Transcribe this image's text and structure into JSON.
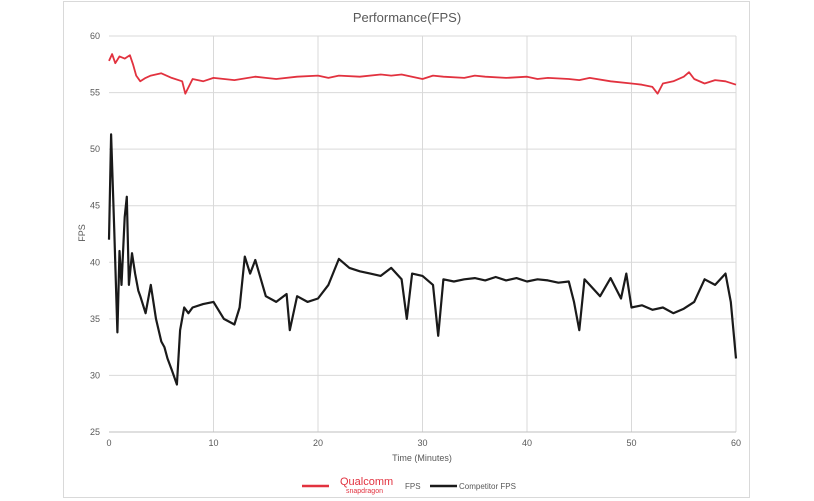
{
  "chart_data": {
    "type": "line",
    "title": "Performance(FPS)",
    "xlabel": "Time (Minutes)",
    "ylabel": "FPS",
    "xlim": [
      0,
      60
    ],
    "ylim": [
      25,
      60
    ],
    "xticks": [
      0,
      10,
      20,
      30,
      40,
      50,
      60
    ],
    "yticks": [
      25,
      30,
      35,
      40,
      45,
      50,
      55,
      60
    ],
    "grid": true,
    "legend_position": "bottom",
    "legend": {
      "qualcomm_brand": "Qualcomm",
      "qualcomm_sub": "snapdragon",
      "qualcomm_series_label": "FPS",
      "competitor_label": "Competitor FPS"
    },
    "series": [
      {
        "name": "Qualcomm snapdragon FPS",
        "color": "#e2323f",
        "x": [
          0,
          0.3,
          0.6,
          1.0,
          1.5,
          2.0,
          2.3,
          2.6,
          3.0,
          3.5,
          4.0,
          5.0,
          6.0,
          7.0,
          7.3,
          8.0,
          9.0,
          10.0,
          12.0,
          14.0,
          15.0,
          16.0,
          18.0,
          20.0,
          21.0,
          22.0,
          24.0,
          26.0,
          27.0,
          28.0,
          30.0,
          31.0,
          32.0,
          34.0,
          35.0,
          36.0,
          38.0,
          40.0,
          41.0,
          42.0,
          44.0,
          45.0,
          46.0,
          48.0,
          50.0,
          51.0,
          52.0,
          52.5,
          53.0,
          54.0,
          55.0,
          55.5,
          56.0,
          57.0,
          58.0,
          59.0,
          60.0
        ],
        "y": [
          57.8,
          58.4,
          57.6,
          58.2,
          58.0,
          58.3,
          57.5,
          56.5,
          56.0,
          56.3,
          56.5,
          56.7,
          56.3,
          56.0,
          54.9,
          56.2,
          56.0,
          56.3,
          56.1,
          56.4,
          56.3,
          56.2,
          56.4,
          56.5,
          56.3,
          56.5,
          56.4,
          56.6,
          56.5,
          56.6,
          56.2,
          56.5,
          56.4,
          56.3,
          56.5,
          56.4,
          56.3,
          56.4,
          56.2,
          56.3,
          56.2,
          56.1,
          56.3,
          56.0,
          55.8,
          55.7,
          55.5,
          54.9,
          55.8,
          56.0,
          56.4,
          56.8,
          56.2,
          55.8,
          56.1,
          56.0,
          55.7
        ]
      },
      {
        "name": "Competitor FPS",
        "color": "#1a1a1a",
        "x": [
          0,
          0.2,
          0.5,
          0.8,
          1.0,
          1.2,
          1.5,
          1.7,
          1.9,
          2.2,
          2.5,
          2.8,
          3.0,
          3.5,
          4.0,
          4.5,
          5.0,
          5.3,
          5.6,
          6.0,
          6.5,
          6.8,
          7.2,
          7.6,
          8.0,
          9.0,
          10.0,
          11.0,
          12.0,
          12.5,
          13.0,
          13.5,
          14.0,
          15.0,
          16.0,
          17.0,
          17.3,
          18.0,
          19.0,
          20.0,
          21.0,
          22.0,
          23.0,
          24.0,
          25.0,
          26.0,
          27.0,
          28.0,
          28.5,
          29.0,
          30.0,
          31.0,
          31.5,
          32.0,
          33.0,
          34.0,
          35.0,
          36.0,
          37.0,
          38.0,
          39.0,
          40.0,
          41.0,
          42.0,
          43.0,
          44.0,
          44.5,
          45.0,
          45.5,
          46.0,
          47.0,
          48.0,
          49.0,
          49.5,
          50.0,
          51.0,
          52.0,
          53.0,
          54.0,
          55.0,
          56.0,
          57.0,
          58.0,
          59.0,
          59.5,
          60.0
        ],
        "y": [
          42.0,
          51.3,
          43.0,
          33.8,
          41.0,
          38.0,
          44.0,
          45.8,
          38.0,
          40.8,
          39.0,
          37.5,
          37.0,
          35.5,
          38.0,
          35.0,
          33.0,
          32.5,
          31.5,
          30.5,
          29.2,
          34.0,
          36.0,
          35.5,
          36.0,
          36.3,
          36.5,
          35.0,
          34.5,
          36.0,
          40.5,
          39.0,
          40.2,
          37.0,
          36.5,
          37.2,
          34.0,
          37.0,
          36.5,
          36.8,
          38.0,
          40.3,
          39.5,
          39.2,
          39.0,
          38.8,
          39.5,
          38.5,
          35.0,
          39.0,
          38.8,
          38.0,
          33.5,
          38.5,
          38.3,
          38.5,
          38.6,
          38.4,
          38.7,
          38.4,
          38.6,
          38.3,
          38.5,
          38.4,
          38.2,
          38.3,
          36.5,
          34.0,
          38.5,
          38.0,
          37.0,
          38.6,
          36.8,
          39.0,
          36.0,
          36.2,
          35.8,
          36.0,
          35.5,
          35.9,
          36.5,
          38.5,
          38.0,
          39.0,
          36.5,
          31.5
        ]
      }
    ]
  }
}
